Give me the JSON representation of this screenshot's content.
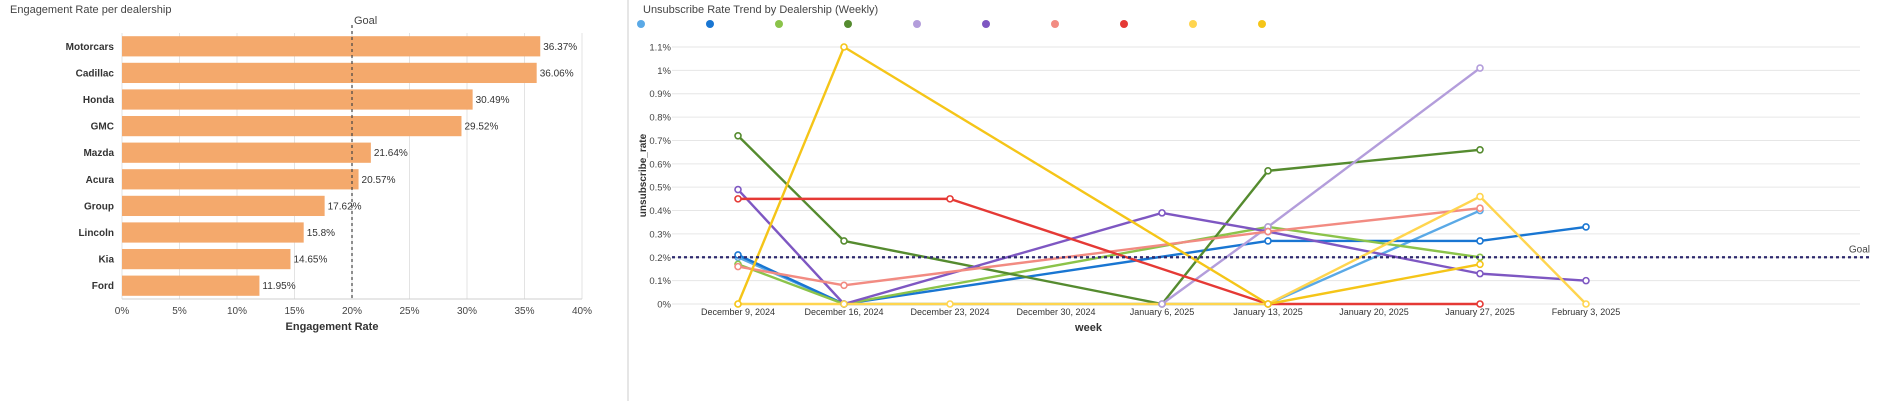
{
  "chart_data": [
    {
      "type": "bar",
      "orientation": "horizontal",
      "title": "Engagement Rate per dealership",
      "xlabel": "Engagement Rate",
      "ylabel": "",
      "categories": [
        "Motorcars",
        "Cadillac",
        "Honda",
        "GMC",
        "Mazda",
        "Acura",
        "Group",
        "Lincoln",
        "Kia",
        "Ford"
      ],
      "values": [
        36.37,
        36.06,
        30.49,
        29.52,
        21.64,
        20.57,
        17.62,
        15.8,
        14.65,
        11.95
      ],
      "value_labels": [
        "36.37%",
        "36.06%",
        "30.49%",
        "29.52%",
        "21.64%",
        "20.57%",
        "17.62%",
        "15.8%",
        "14.65%",
        "11.95%"
      ],
      "xlim": [
        0,
        40
      ],
      "x_ticks": [
        0,
        5,
        10,
        15,
        20,
        25,
        30,
        35,
        40
      ],
      "x_tick_labels": [
        "0%",
        "5%",
        "10%",
        "15%",
        "20%",
        "25%",
        "30%",
        "35%",
        "40%"
      ],
      "goal": {
        "value": 20,
        "label": "Goal"
      },
      "bar_color": "#f4a96c",
      "grid": true
    },
    {
      "type": "line",
      "title": "Unsubscribe Rate Trend by Dealership (Weekly)",
      "xlabel": "week",
      "ylabel": "unsubscribe_rate",
      "x": [
        "December 9, 2024",
        "December 16, 2024",
        "December 23, 2024",
        "December 30, 2024",
        "January 6, 2025",
        "January 13, 2025",
        "January 20, 2025",
        "January 27, 2025",
        "February 3, 2025"
      ],
      "ylim": [
        0,
        1.1
      ],
      "y_ticks": [
        0,
        0.1,
        0.2,
        0.3,
        0.4,
        0.5,
        0.6,
        0.7,
        0.8,
        0.9,
        1.0,
        1.1
      ],
      "y_tick_labels": [
        "0%",
        "0.1%",
        "0.2%",
        "0.3%",
        "0.4%",
        "0.5%",
        "0.6%",
        "0.7%",
        "0.8%",
        "0.9%",
        "1%",
        "1.1%"
      ],
      "goal": {
        "value": 0.2,
        "label": "Goal"
      },
      "legend_position": "top",
      "grid": true,
      "series": [
        {
          "color": "#5aa9e6",
          "points": [
            [
              0,
              0.2
            ],
            [
              1,
              0.0
            ],
            [
              5,
              0.0
            ],
            [
              7,
              0.4
            ]
          ]
        },
        {
          "color": "#1976d2",
          "points": [
            [
              0,
              0.21
            ],
            [
              1,
              0.0
            ],
            [
              5,
              0.27
            ],
            [
              7,
              0.27
            ],
            [
              8,
              0.33
            ]
          ]
        },
        {
          "color": "#8bc34a",
          "points": [
            [
              0,
              0.17
            ],
            [
              1,
              0.0
            ],
            [
              5,
              0.33
            ],
            [
              7,
              0.2
            ]
          ]
        },
        {
          "color": "#558b2f",
          "points": [
            [
              0,
              0.72
            ],
            [
              1,
              0.27
            ],
            [
              4,
              0.0
            ],
            [
              5,
              0.57
            ],
            [
              7,
              0.66
            ]
          ]
        },
        {
          "color": "#b39ddb",
          "points": [
            [
              4,
              0.0
            ],
            [
              5,
              0.33
            ],
            [
              7,
              1.01
            ]
          ]
        },
        {
          "color": "#7e57c2",
          "points": [
            [
              0,
              0.49
            ],
            [
              1,
              0.0
            ],
            [
              4,
              0.39
            ],
            [
              5,
              0.31
            ],
            [
              7,
              0.13
            ],
            [
              8,
              0.1
            ]
          ]
        },
        {
          "color": "#f28b82",
          "points": [
            [
              0,
              0.16
            ],
            [
              1,
              0.08
            ],
            [
              5,
              0.31
            ],
            [
              7,
              0.41
            ]
          ]
        },
        {
          "color": "#e53935",
          "points": [
            [
              0,
              0.45
            ],
            [
              2,
              0.45
            ],
            [
              5,
              0.0
            ],
            [
              7,
              0.0
            ]
          ]
        },
        {
          "color": "#ffd54f",
          "points": [
            [
              0,
              0.0
            ],
            [
              1,
              0.0
            ],
            [
              2,
              0.0
            ],
            [
              5,
              0.0
            ],
            [
              7,
              0.46
            ],
            [
              8,
              0.0
            ]
          ]
        },
        {
          "color": "#f5c518",
          "points": [
            [
              0,
              0.0
            ],
            [
              1,
              1.1
            ],
            [
              5,
              0.0
            ],
            [
              7,
              0.17
            ]
          ]
        }
      ]
    }
  ]
}
